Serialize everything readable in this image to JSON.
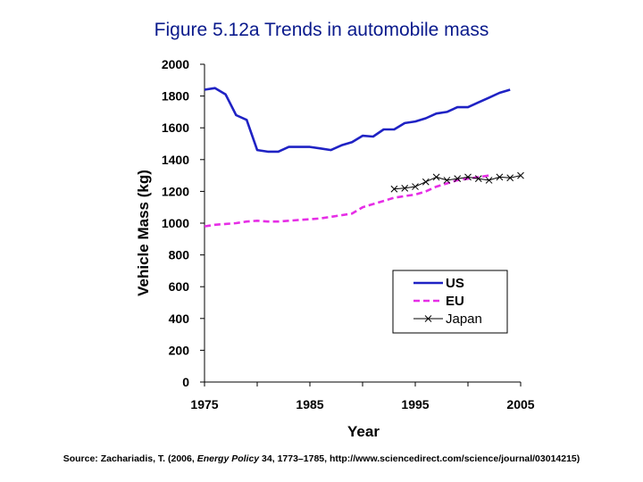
{
  "title": "Figure 5.12a Trends in automobile mass",
  "source": {
    "prefix": "Source: Zachariadis, T. (2006, ",
    "journal": "Energy Policy",
    "suffix": " 34, 1773–1785, http://www.sciencedirect.com/science/journal/03014215)"
  },
  "chart_data": {
    "type": "line",
    "xlabel": "Year",
    "ylabel": "Vehicle Mass (kg)",
    "xlim": [
      1975,
      2005
    ],
    "ylim": [
      0,
      2000
    ],
    "x_ticks": [
      1975,
      1985,
      1995,
      2005
    ],
    "y_ticks": [
      0,
      200,
      400,
      600,
      800,
      1000,
      1200,
      1400,
      1600,
      1800,
      2000
    ],
    "grid": false,
    "legend_position": "bottom-right",
    "series": [
      {
        "name": "US",
        "color": "#1f22c4",
        "style": "solid",
        "marker": "none",
        "x": [
          1975,
          1976,
          1977,
          1978,
          1979,
          1980,
          1981,
          1982,
          1983,
          1984,
          1985,
          1986,
          1987,
          1988,
          1989,
          1990,
          1991,
          1992,
          1993,
          1994,
          1995,
          1996,
          1997,
          1998,
          1999,
          2000,
          2001,
          2002,
          2003,
          2004
        ],
        "y": [
          1840,
          1850,
          1810,
          1680,
          1650,
          1460,
          1450,
          1450,
          1480,
          1480,
          1480,
          1470,
          1460,
          1490,
          1510,
          1550,
          1545,
          1590,
          1590,
          1630,
          1640,
          1660,
          1690,
          1700,
          1730,
          1730,
          1760,
          1790,
          1820,
          1840
        ]
      },
      {
        "name": "EU",
        "color": "#e62ee6",
        "style": "dashed",
        "marker": "none",
        "x": [
          1975,
          1976,
          1977,
          1978,
          1979,
          1980,
          1981,
          1982,
          1983,
          1984,
          1985,
          1986,
          1987,
          1988,
          1989,
          1990,
          1991,
          1992,
          1993,
          1994,
          1995,
          1996,
          1997,
          1998,
          1999,
          2000,
          2001,
          2002
        ],
        "y": [
          980,
          990,
          995,
          1000,
          1010,
          1015,
          1010,
          1010,
          1015,
          1020,
          1025,
          1030,
          1040,
          1050,
          1060,
          1100,
          1120,
          1140,
          1160,
          1170,
          1180,
          1200,
          1230,
          1250,
          1270,
          1280,
          1290,
          1300
        ]
      },
      {
        "name": "Japan",
        "color": "#000000",
        "style": "solid",
        "marker": "x",
        "x": [
          1993,
          1994,
          1995,
          1996,
          1997,
          1998,
          1999,
          2000,
          2001,
          2002,
          2003,
          2004,
          2005
        ],
        "y": [
          1215,
          1220,
          1230,
          1260,
          1290,
          1270,
          1280,
          1290,
          1280,
          1270,
          1290,
          1285,
          1300
        ]
      }
    ]
  }
}
